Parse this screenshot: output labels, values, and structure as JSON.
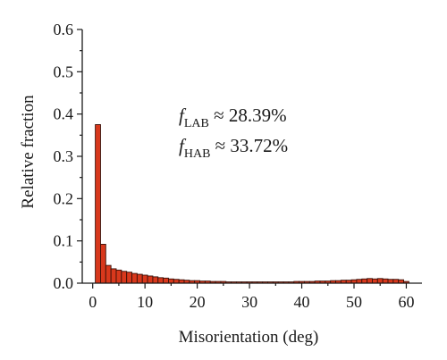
{
  "chart_data": {
    "type": "bar",
    "xlabel": "Misorientation (deg)",
    "ylabel": "Relative fraction",
    "xlim": [
      -2,
      63
    ],
    "ylim": [
      0,
      0.6
    ],
    "xticks": [
      "0",
      "10",
      "20",
      "30",
      "40",
      "50",
      "60"
    ],
    "yticks": [
      "0.0",
      "0.1",
      "0.2",
      "0.3",
      "0.4",
      "0.5",
      "0.6"
    ],
    "grid": false,
    "bin_width": 1,
    "bar_color": "#d8381c",
    "x": [
      1,
      2,
      3,
      4,
      5,
      6,
      7,
      8,
      9,
      10,
      11,
      12,
      13,
      14,
      15,
      16,
      17,
      18,
      19,
      20,
      21,
      22,
      23,
      24,
      25,
      26,
      27,
      28,
      29,
      30,
      31,
      32,
      33,
      34,
      35,
      36,
      37,
      38,
      39,
      40,
      41,
      42,
      43,
      44,
      45,
      46,
      47,
      48,
      49,
      50,
      51,
      52,
      53,
      54,
      55,
      56,
      57,
      58,
      59,
      60
    ],
    "values": [
      0.375,
      0.092,
      0.042,
      0.034,
      0.031,
      0.028,
      0.026,
      0.023,
      0.021,
      0.019,
      0.017,
      0.015,
      0.013,
      0.012,
      0.01,
      0.009,
      0.008,
      0.007,
      0.006,
      0.006,
      0.005,
      0.005,
      0.004,
      0.004,
      0.004,
      0.003,
      0.003,
      0.003,
      0.003,
      0.003,
      0.003,
      0.003,
      0.003,
      0.003,
      0.003,
      0.003,
      0.003,
      0.003,
      0.004,
      0.004,
      0.004,
      0.004,
      0.005,
      0.005,
      0.005,
      0.006,
      0.006,
      0.007,
      0.007,
      0.008,
      0.009,
      0.01,
      0.011,
      0.01,
      0.011,
      0.01,
      0.009,
      0.009,
      0.008,
      0.004
    ],
    "annotations": [
      {
        "prefix": "f",
        "sub": "LAB",
        "text": " ≈ 28.39%"
      },
      {
        "prefix": "f",
        "sub": "HAB",
        "text": " ≈ 33.72%"
      }
    ]
  }
}
